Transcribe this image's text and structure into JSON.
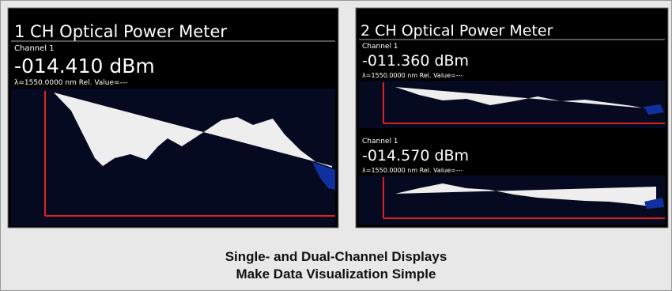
{
  "screens": [
    {
      "title": "1 CH Optical Power Meter",
      "channels": [
        {
          "label": "Channel 1",
          "reading": "-014.410 dBm",
          "info": "λ=1550.0000 nm  Rel. Value=---"
        }
      ]
    },
    {
      "title": "2 CH Optical Power Meter",
      "channels": [
        {
          "label": "Channel 1",
          "reading": "-011.360 dBm",
          "info": "λ=1550.0000 nm  Rel. Value=---"
        },
        {
          "label": "Channel 1",
          "reading": "-014.570 dBm",
          "info": "λ=1550.0000 nm  Rel. Value=---"
        }
      ]
    }
  ],
  "caption": [
    "Single- and Dual-Channel Displays",
    "Make Data Visualization Simple"
  ]
}
